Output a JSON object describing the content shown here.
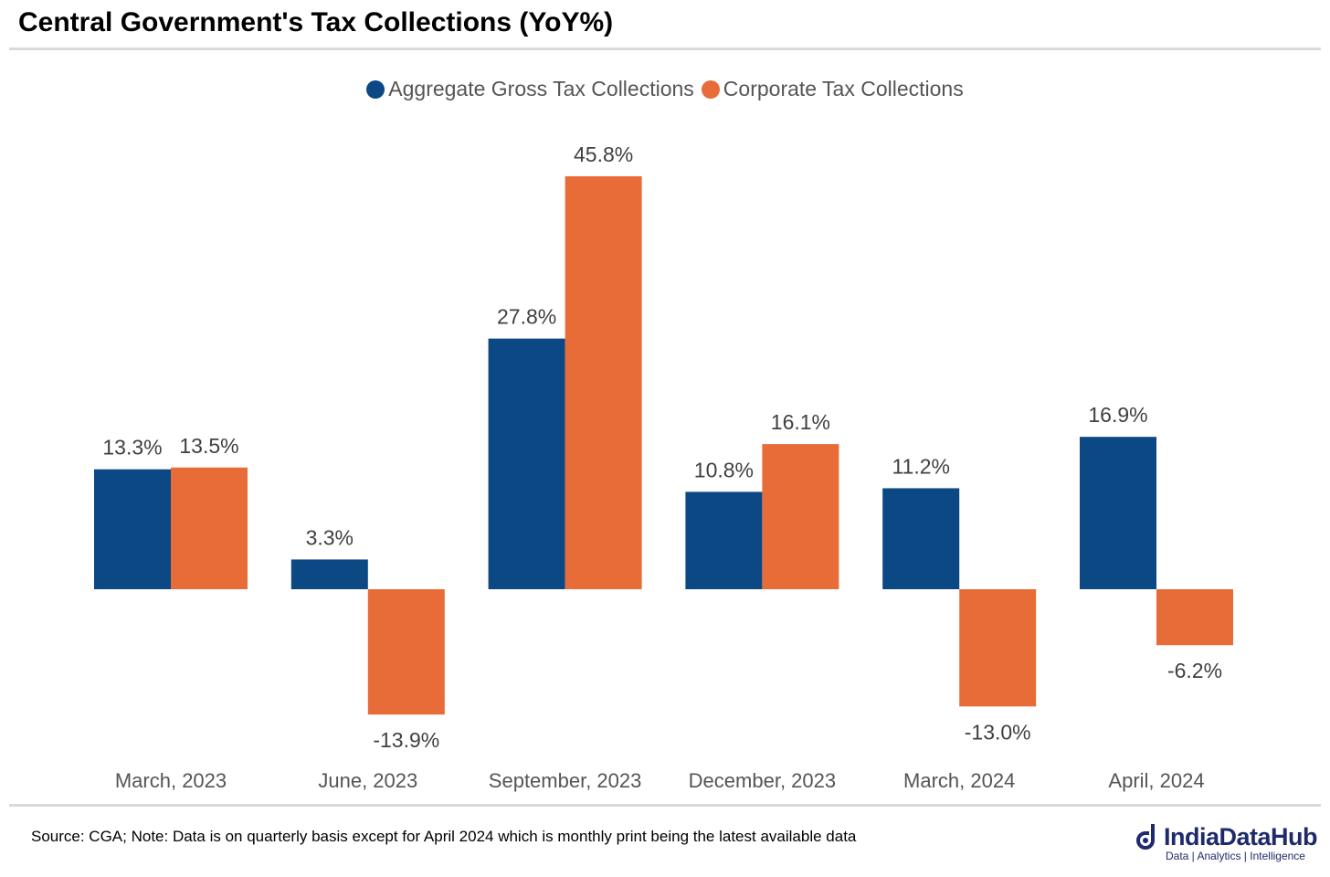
{
  "title": "Central Government's Tax Collections (YoY%)",
  "footnote": "Source: CGA; Note: Data is on quarterly basis except for April 2024 which is monthly print being the latest available data",
  "brand": {
    "name": "IndiaDataHub",
    "tagline": "Data | Analytics | Intelligence"
  },
  "colors": {
    "aggregate": "#0b4884",
    "corporate": "#e76c38"
  },
  "chart_data": {
    "type": "bar",
    "title": "Central Government's Tax Collections (YoY%)",
    "categories": [
      "March, 2023",
      "June, 2023",
      "September, 2023",
      "December, 2023",
      "March, 2024",
      "April, 2024"
    ],
    "series": [
      {
        "name": "Aggregate Gross Tax Collections",
        "values": [
          13.3,
          3.3,
          27.8,
          10.8,
          11.2,
          16.9
        ],
        "labels": [
          "13.3%",
          "3.3%",
          "27.8%",
          "10.8%",
          "11.2%",
          "16.9%"
        ]
      },
      {
        "name": "Corporate Tax Collections",
        "values": [
          13.5,
          -13.9,
          45.8,
          16.1,
          -13.0,
          -6.2
        ],
        "labels": [
          "13.5%",
          "-13.9%",
          "45.8%",
          "16.1%",
          "-13.0%",
          "-6.2%"
        ]
      }
    ],
    "ylim": [
      -20,
      50
    ],
    "grid": false,
    "legend_position": "top"
  }
}
